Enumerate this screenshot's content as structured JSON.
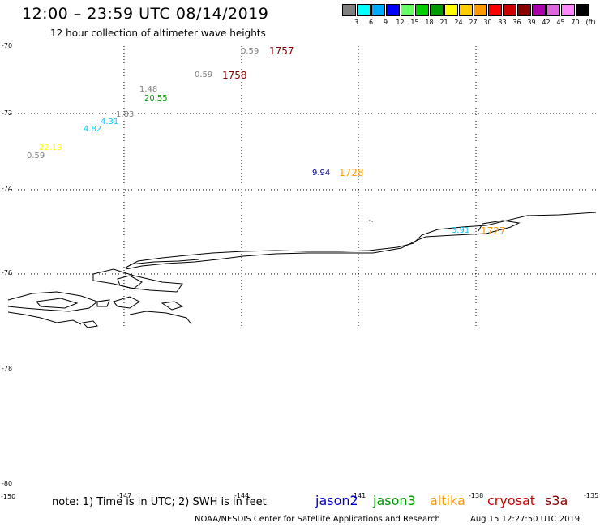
{
  "title": "12:00 – 23:59 UTC 08/14/2019",
  "subtitle": "12 hour collection of altimeter wave heights",
  "colorbar": {
    "colors": [
      "#808080",
      "#00ffff",
      "#00aaff",
      "#0000ff",
      "#66ff66",
      "#00cc00",
      "#009900",
      "#ffff00",
      "#ffcc00",
      "#ff9900",
      "#ff0000",
      "#cc0000",
      "#880000",
      "#aa00aa",
      "#dd66dd",
      "#ff88ff",
      "#000000"
    ],
    "labels": [
      "3",
      "6",
      "9",
      "12",
      "15",
      "18",
      "21",
      "24",
      "27",
      "30",
      "33",
      "36",
      "39",
      "42",
      "45",
      "70",
      "(ft)"
    ]
  },
  "lat_labels": [
    "-70",
    "-72",
    "-74",
    "-76",
    "-78",
    "-80"
  ],
  "lon_labels": [
    "-150",
    "-147",
    "-144",
    "-141",
    "-138",
    "-135"
  ],
  "observations": [
    {
      "value": "0.59",
      "color": "#808080"
    },
    {
      "value": "0.59",
      "color": "#808080"
    },
    {
      "value": "1.48",
      "color": "#808080"
    },
    {
      "value": "20.55",
      "color": "#009900"
    },
    {
      "value": "1.83",
      "color": "#808080"
    },
    {
      "value": "4.31",
      "color": "#00ccff"
    },
    {
      "value": "4.82",
      "color": "#00ccff"
    },
    {
      "value": "22.19",
      "color": "#ffff00"
    },
    {
      "value": "0.59",
      "color": "#808080"
    },
    {
      "value": "9.94",
      "color": "#000099"
    },
    {
      "value": "3.91",
      "color": "#00ccff"
    }
  ],
  "times": [
    {
      "value": "1757",
      "color": "#880000"
    },
    {
      "value": "1758",
      "color": "#880000"
    },
    {
      "value": "1728",
      "color": "#ff9900"
    },
    {
      "value": "1727",
      "color": "#ff9900"
    }
  ],
  "note": "note: 1) Time is in UTC; 2) SWH is in feet",
  "satellites": [
    {
      "name": "jason2",
      "color": "#0000cc"
    },
    {
      "name": "jason3",
      "color": "#009900"
    },
    {
      "name": "altika",
      "color": "#ff9900"
    },
    {
      "name": "cryosat",
      "color": "#cc0000"
    },
    {
      "name": "s3a",
      "color": "#880000"
    }
  ],
  "credit": "NOAA/NESDIS Center for Satellite Applications and Research",
  "timestamp": "Aug 15 12:27:50 UTC 2019"
}
